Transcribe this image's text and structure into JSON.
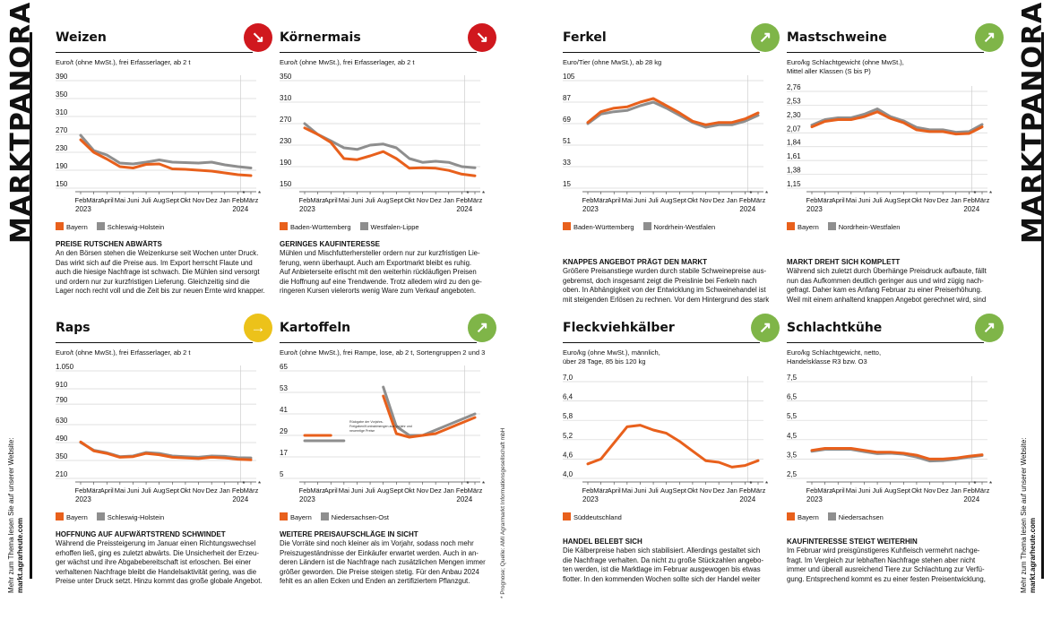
{
  "page": {
    "side_title": "MARKTPANORAMA",
    "side_note_line1": "Mehr zum Thema lesen Sie auf unserer Website:",
    "side_note_line2": "markt.agrarheute.com",
    "source_note": "* Prognose; Quelle: AMI Agrarmarkt Informationsgesellschaft mbH"
  },
  "colors": {
    "orange": "#e8601c",
    "gray": "#8e8e8e",
    "down": "#d0181e",
    "up": "#7fb548",
    "side": "#ecc21a"
  },
  "panels": [
    {
      "id": "weizen",
      "title": "Weizen",
      "trend": "down",
      "trend_icon": "arrow-down-right-icon",
      "unit_lines": [
        "Euro/t (ohne MwSt.), frei Erfasserlager, ab 2 t"
      ],
      "legend": [
        "Bayern",
        "Schleswig-Holstein"
      ],
      "headline": "PREISE RUTSCHEN ABWÄRTS",
      "text_lines": [
        "An den Börsen stehen die Weizenkurse seit Wochen unter Druck.",
        "Das wirkt sich auf die Preise aus. Im Export herrscht Flaute und",
        "auch die hiesige Nachfrage ist schwach. Die Mühlen sind versorgt",
        "und ordern nur zur kurzfristigen Lieferung. Gleichzeitig sind die",
        "Lager noch recht voll und die Zeit bis zur neuen Ernte wird knapper."
      ]
    },
    {
      "id": "koernermais",
      "title": "Körnermais",
      "trend": "down",
      "trend_icon": "arrow-down-right-icon",
      "unit_lines": [
        "Euro/t (ohne MwSt.), frei Erfasserlager, ab 2 t"
      ],
      "legend": [
        "Baden-Württemberg",
        "Westfalen-Lippe"
      ],
      "headline": "GERINGES KAUFINTERESSE",
      "text_lines": [
        "Mühlen und Mischfutterhersteller ordern nur zur kurzfristigen Lie-",
        "ferung, wenn überhaupt. Auch am Exportmarkt bleibt es ruhig.",
        "Auf Anbieterseite erlischt mit den weiterhin rückläufigen Preisen",
        "die Hoffnung auf eine Trendwende. Trotz alledem wird zu den ge-",
        "ringeren Kursen vielerorts wenig Ware zum Verkauf angeboten."
      ]
    },
    {
      "id": "ferkel",
      "title": "Ferkel",
      "trend": "up",
      "trend_icon": "arrow-up-right-icon",
      "unit_lines": [
        "Euro/Tier (ohne MwSt.), ab 28 kg"
      ],
      "legend": [
        "Baden-Württemberg",
        "Nordrhein-Westfalen"
      ],
      "headline": "KNAPPES ANGEBOT PRÄGT DEN MARKT",
      "text_lines": [
        "Größere Preisanstiege wurden durch stabile Schweinepreise aus-",
        "gebremst, doch insgesamt zeigt die Preislinie bei Ferkeln nach",
        "oben. In Abhängigkeit von der Entwicklung im Schweinehandel ist",
        "mit steigenden Erlösen zu rechnen. Vor dem Hintergrund des stark"
      ]
    },
    {
      "id": "mastschweine",
      "title": "Mastschweine",
      "trend": "up",
      "trend_icon": "arrow-up-right-icon",
      "unit_lines": [
        "Euro/kg Schlachtgewicht (ohne MwSt.),",
        "Mittel aller Klassen (S bis P)"
      ],
      "legend": [
        "Bayern",
        "Nordrhein-Westfalen"
      ],
      "headline": "MARKT DREHT SICH KOMPLETT",
      "text_lines": [
        "Während sich zuletzt durch Überhänge Preisdruck aufbaute, fällt",
        "nun das Aufkommen deutlich geringer aus und wird zügig nach-",
        "gefragt. Daher kam es Anfang Februar zu einer Preiserhöhung.",
        "Weil mit einem anhaltend knappen Angebot gerechnet wird, sind"
      ]
    },
    {
      "id": "raps",
      "title": "Raps",
      "trend": "side",
      "trend_icon": "arrow-right-icon",
      "unit_lines": [
        "Euro/t (ohne MwSt.), frei Erfasserlager, ab 2 t"
      ],
      "legend": [
        "Bayern",
        "Schleswig-Holstein"
      ],
      "headline": "HOFFNUNG AUF AUFWÄRTSTREND SCHWINDET",
      "text_lines": [
        "Während die Preissteigerung im Januar einen Richtungswechsel",
        "erhoffen ließ, ging es zuletzt abwärts. Die Unsicherheit der Erzeu-",
        "ger wächst und ihre Abgabebereitschaft ist erloschen. Bei einer",
        "verhaltenen Nachfrage bleibt die Handelsaktivität gering, was die",
        "Preise unter Druck setzt. Hinzu kommt das große globale Angebot."
      ]
    },
    {
      "id": "kartoffeln",
      "title": "Kartoffeln",
      "trend": "up",
      "trend_icon": "arrow-up-right-icon",
      "unit_lines": [
        "Euro/t (ohne MwSt.), frei Rampe, lose, ab 2 t, Sortengruppen 2 und 3"
      ],
      "legend": [
        "Bayern",
        "Niedersachsen-Ost"
      ],
      "headline": "WEITERE PREISAUFSCHLÄGE IN SICHT",
      "text_lines": [
        "Die Vorräte sind noch kleiner als im Vorjahr, sodass noch mehr",
        "Preiszugeständnisse der Einkäufer erwartet werden. Auch in an-",
        "deren Ländern ist die Nachfrage nach zusätzlichen Mengen immer",
        "größer geworden. Die Preise steigen stetig. Für den Anbau 2024",
        "fehlt es an allen Ecken und Enden an zertifiziertem Pflanzgut."
      ]
    },
    {
      "id": "fleckvieh",
      "title": "Fleckviehkälber",
      "trend": "up",
      "trend_icon": "arrow-up-right-icon",
      "unit_lines": [
        "Euro/kg (ohne MwSt.), männlich,",
        "über 28 Tage, 85 bis 120 kg"
      ],
      "legend": [
        "Süddeutschland"
      ],
      "headline": "HANDEL BELEBT SICH",
      "text_lines": [
        "Die Kälberpreise haben sich stabilisiert. Allerdings gestaltet sich",
        "die Nachfrage verhalten. Da nicht zu große Stückzahlen angebo-",
        "ten werden, ist die Marktlage im Februar ausgewogen bis etwas",
        "flotter. In den kommenden Wochen sollte sich der Handel weiter"
      ]
    },
    {
      "id": "schlachtkuehe",
      "title": "Schlachtkühe",
      "trend": "up",
      "trend_icon": "arrow-up-right-icon",
      "unit_lines": [
        "Euro/kg Schlachtgewicht, netto,",
        "Handelsklasse R3 bzw. O3"
      ],
      "legend": [
        "Bayern",
        "Niedersachsen"
      ],
      "headline": "KAUFINTERESSE STEIGT WEITERHIN",
      "text_lines": [
        "Im Februar wird preisgünstigeres Kuhfleisch vermehrt nachge-",
        "fragt. Im Vergleich zur lebhaften Nachfrage stehen aber nicht",
        "immer und überall ausreichend Tiere zur Schlachtung zur Verfü-",
        "gung. Entsprechend kommt es zu einer festen Preisentwicklung,"
      ]
    }
  ],
  "chart_data": [
    {
      "panel": "weizen",
      "type": "line",
      "x": [
        "Feb",
        "März",
        "April",
        "Mai",
        "Juni",
        "Juli",
        "Aug",
        "Sept",
        "Okt",
        "Nov",
        "Dez",
        "Jan",
        "Feb",
        "März"
      ],
      "x_year_labels": [
        "2023",
        "2024"
      ],
      "forecast_marks": [
        "*",
        "*"
      ],
      "yticks": [
        "390",
        "350",
        "310",
        "270",
        "230",
        "190",
        "150"
      ],
      "ylim": [
        150,
        390
      ],
      "series": [
        {
          "name": "Bayern",
          "values": [
            258,
            230,
            215,
            198,
            195,
            203,
            204,
            193,
            192,
            190,
            188,
            184,
            180,
            178
          ]
        },
        {
          "name": "Schleswig-Holstein",
          "values": [
            268,
            234,
            224,
            206,
            204,
            208,
            213,
            208,
            207,
            206,
            208,
            202,
            198,
            195
          ]
        }
      ]
    },
    {
      "panel": "koernermais",
      "type": "line",
      "x": [
        "Feb",
        "März",
        "April",
        "Mai",
        "Juni",
        "Juli",
        "Aug",
        "Sept",
        "Okt",
        "Nov",
        "Dez",
        "Jan",
        "Feb",
        "März"
      ],
      "x_year_labels": [
        "2023",
        "2024"
      ],
      "forecast_marks": [
        "*",
        "*"
      ],
      "yticks": [
        "350",
        "310",
        "270",
        "230",
        "190",
        "150"
      ],
      "ylim": [
        150,
        350
      ],
      "series": [
        {
          "name": "Baden-Württemberg",
          "values": [
            262,
            250,
            235,
            205,
            203,
            210,
            218,
            205,
            187,
            188,
            187,
            183,
            176,
            173
          ]
        },
        {
          "name": "Westfalen-Lippe",
          "values": [
            270,
            250,
            238,
            225,
            222,
            230,
            232,
            225,
            205,
            198,
            200,
            198,
            190,
            188
          ]
        }
      ]
    },
    {
      "panel": "ferkel",
      "type": "line",
      "x": [
        "Feb",
        "März",
        "April",
        "Mai",
        "Juni",
        "Juli",
        "Aug",
        "Sept",
        "Okt",
        "Nov",
        "Dez",
        "Jan",
        "Feb",
        "März"
      ],
      "x_year_labels": [
        "2023",
        "2024"
      ],
      "forecast_marks": [
        "*",
        "*"
      ],
      "yticks": [
        "105",
        "87",
        "69",
        "51",
        "33",
        "15"
      ],
      "ylim": [
        15,
        105
      ],
      "series": [
        {
          "name": "Baden-Württemberg",
          "values": [
            70,
            79,
            82,
            83,
            87,
            90,
            84,
            78,
            71,
            68,
            70,
            70,
            73,
            78
          ]
        },
        {
          "name": "Nordrhein-Westfalen",
          "values": [
            69,
            77,
            79,
            80,
            84,
            87,
            82,
            76,
            70,
            66,
            68,
            68,
            71,
            76
          ]
        }
      ]
    },
    {
      "panel": "mastschweine",
      "type": "line",
      "x": [
        "Feb",
        "März",
        "April",
        "Mai",
        "Juni",
        "Juli",
        "Aug",
        "Sept",
        "Okt",
        "Nov",
        "Dez",
        "Jan",
        "Feb",
        "März"
      ],
      "x_year_labels": [
        "2023",
        "2024"
      ],
      "forecast_marks": [
        "*",
        "*"
      ],
      "yticks": [
        "2,76",
        "2,53",
        "2,30",
        "2,07",
        "1,84",
        "1,61",
        "1,38",
        "1,15"
      ],
      "ylim": [
        1.15,
        2.76
      ],
      "series": [
        {
          "name": "Bayern",
          "values": [
            2.17,
            2.26,
            2.29,
            2.29,
            2.34,
            2.42,
            2.31,
            2.24,
            2.12,
            2.09,
            2.09,
            2.05,
            2.06,
            2.17
          ]
        },
        {
          "name": "Nordrhein-Westfalen",
          "values": [
            2.2,
            2.29,
            2.32,
            2.32,
            2.38,
            2.47,
            2.34,
            2.27,
            2.16,
            2.12,
            2.12,
            2.08,
            2.09,
            2.21
          ]
        }
      ]
    },
    {
      "panel": "raps",
      "type": "line",
      "x": [
        "Feb",
        "März",
        "April",
        "Mai",
        "Juni",
        "Juli",
        "Aug",
        "Sept",
        "Okt",
        "Nov",
        "Dez",
        "Jan",
        "Feb",
        "März"
      ],
      "x_year_labels": [
        "2023",
        "2024"
      ],
      "forecast_marks": [
        "*",
        "*"
      ],
      "yticks": [
        "1.050",
        "910",
        "790",
        "630",
        "490",
        "350",
        "210"
      ],
      "ylim": [
        210,
        1050
      ],
      "series": [
        {
          "name": "Bayern",
          "values": [
            495,
            425,
            405,
            375,
            380,
            405,
            395,
            375,
            370,
            365,
            375,
            370,
            360,
            355
          ]
        },
        {
          "name": "Schleswig-Holstein",
          "values": [
            490,
            430,
            410,
            380,
            385,
            412,
            405,
            385,
            380,
            375,
            385,
            382,
            372,
            370
          ]
        }
      ]
    },
    {
      "panel": "kartoffeln",
      "type": "line",
      "x": [
        "Feb",
        "März",
        "April",
        "Mai",
        "Juni",
        "Juli",
        "Aug",
        "Sept",
        "Okt",
        "Nov",
        "Dez",
        "Jan",
        "Feb",
        "März"
      ],
      "x_year_labels": [
        "2023",
        "2024"
      ],
      "forecast_marks": [
        "*",
        "*"
      ],
      "yticks": [
        "65",
        "53",
        "41",
        "29",
        "17",
        "5"
      ],
      "ylim": [
        5,
        65
      ],
      "annotation": "Rückgabe der Vorjahrs-... Freigaben/Kontraktmengen aus Vorjahr und... neuerntige Preise",
      "series": [
        {
          "name": "Bayern",
          "values": [
            29,
            29,
            29,
            null,
            null,
            null,
            51,
            30,
            28,
            29,
            30,
            33,
            36,
            39
          ]
        },
        {
          "name": "Niedersachsen-Ost",
          "values": [
            26,
            26,
            26,
            26,
            null,
            null,
            56,
            34,
            29,
            29,
            32,
            35,
            38,
            41
          ]
        }
      ]
    },
    {
      "panel": "fleckvieh",
      "type": "line",
      "x": [
        "Feb",
        "März",
        "April",
        "Mai",
        "Juni",
        "Juli",
        "Aug",
        "Sept",
        "Okt",
        "Nov",
        "Dez",
        "Jan",
        "Feb",
        "März"
      ],
      "x_year_labels": [
        "2023",
        "2024"
      ],
      "forecast_marks": [
        "*",
        "*"
      ],
      "yticks": [
        "7,0",
        "6,4",
        "5,8",
        "5,2",
        "4,6",
        "4,0"
      ],
      "ylim": [
        4.0,
        7.0
      ],
      "series": [
        {
          "name": "Süddeutschland",
          "values": [
            4.45,
            4.6,
            5.1,
            5.6,
            5.65,
            5.5,
            5.4,
            5.15,
            4.85,
            4.55,
            4.5,
            4.35,
            4.4,
            4.55
          ]
        }
      ]
    },
    {
      "panel": "schlachtkuehe",
      "type": "line",
      "x": [
        "Feb",
        "März",
        "April",
        "Mai",
        "Juni",
        "Juli",
        "Aug",
        "Sept",
        "Okt",
        "Nov",
        "Dez",
        "Jan",
        "Feb",
        "März"
      ],
      "x_year_labels": [
        "2023",
        "2024"
      ],
      "forecast_marks": [
        "*",
        "*"
      ],
      "yticks": [
        "7,5",
        "6,5",
        "5,5",
        "4,5",
        "3,5",
        "2,5"
      ],
      "ylim": [
        2.5,
        7.5
      ],
      "series": [
        {
          "name": "Bayern",
          "values": [
            3.95,
            4.05,
            4.05,
            4.05,
            3.95,
            3.85,
            3.85,
            3.8,
            3.7,
            3.5,
            3.5,
            3.55,
            3.65,
            3.72
          ]
        },
        {
          "name": "Niedersachsen",
          "values": [
            3.9,
            4.0,
            4.0,
            4.0,
            3.88,
            3.78,
            3.8,
            3.75,
            3.6,
            3.4,
            3.42,
            3.5,
            3.6,
            3.68
          ]
        }
      ]
    }
  ]
}
